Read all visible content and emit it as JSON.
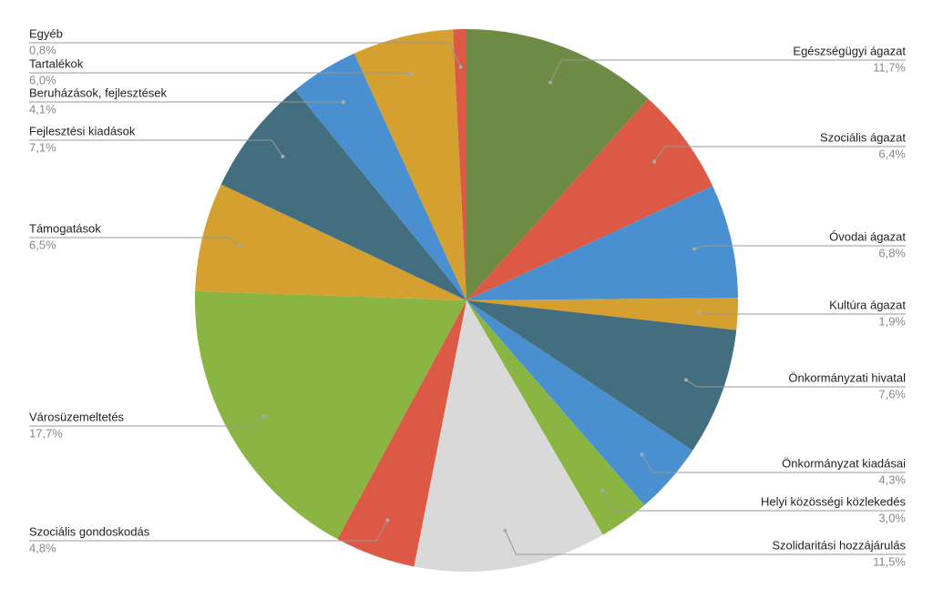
{
  "chart_data": {
    "type": "pie",
    "categories": [
      "Egészségügyi ágazat",
      "Szociális ágazat",
      "Óvodai ágazat",
      "Kultúra ágazat",
      "Önkormányzati hivatal",
      "Önkormányzat kiadásai",
      "Helyi közösségi közlekedés",
      "Szolidaritási hozzájárulás",
      "Szociális gondoskodás",
      "Városüzemeltetés",
      "Támogatások",
      "Fejlesztési kiadások",
      "Beruházások, fejlesztések",
      "Tartalékok",
      "Egyéb"
    ],
    "values": [
      11.7,
      6.4,
      6.8,
      1.9,
      7.6,
      4.3,
      3.0,
      11.5,
      4.8,
      17.7,
      6.5,
      7.1,
      4.1,
      6.0,
      0.8
    ],
    "value_labels": [
      "11,7%",
      "6,4%",
      "6,8%",
      "1,9%",
      "7,6%",
      "4,3%",
      "3,0%",
      "11,5%",
      "4,8%",
      "17,7%",
      "6,5%",
      "7,1%",
      "4,1%",
      "6,0%",
      "0,8%"
    ],
    "colors": [
      "#6e8b45",
      "#dc5a45",
      "#4a90d0",
      "#d4a030",
      "#436e80",
      "#4a90d0",
      "#8ab542",
      "#d9d9d9",
      "#dc5a45",
      "#8ab542",
      "#d4a030",
      "#436e80",
      "#4a90d0",
      "#d4a030",
      "#dc5a45"
    ]
  }
}
